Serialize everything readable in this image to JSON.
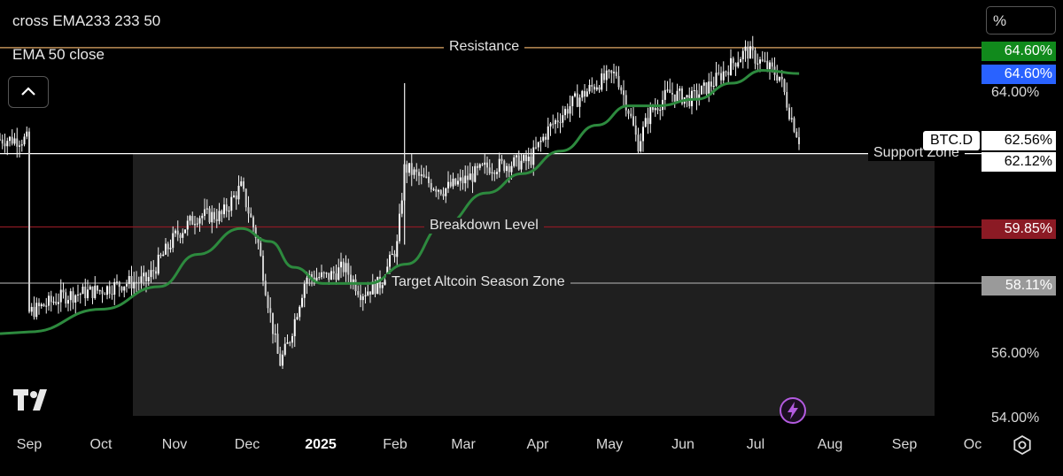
{
  "legend": {
    "line1": "cross EMA233 233 50",
    "line2": "EMA 50 close"
  },
  "scale_button": "%",
  "symbol_tag": "BTC.D",
  "price_tags": [
    {
      "label": "64.60%",
      "bg": "#118a1c",
      "fg": "#ffffff"
    },
    {
      "label": "64.60%",
      "bg": "#2962ff",
      "fg": "#ffffff"
    },
    {
      "label": "62.56%",
      "bg": "#ffffff",
      "fg": "#000000"
    },
    {
      "label": "62.12%",
      "bg": "#ffffff",
      "fg": "#000000"
    },
    {
      "label": "59.85%",
      "bg": "#8b1a24",
      "fg": "#ffffff"
    },
    {
      "label": "58.11%",
      "bg": "#9a9a9a",
      "fg": "#ffffff"
    }
  ],
  "chart_data": {
    "type": "candlestick",
    "symbol": "BTC.D",
    "y_unit": "%",
    "y_axis_ticks": [
      "64.00%",
      "56.00%",
      "54.00%"
    ],
    "x_axis_ticks": [
      "Sep",
      "Oct",
      "Nov",
      "Dec",
      "2025",
      "Feb",
      "Mar",
      "Apr",
      "May",
      "Jun",
      "Jul",
      "Aug",
      "Sep",
      "Oc"
    ],
    "horizontal_levels": [
      {
        "label": "Resistance",
        "value": 65.4,
        "color": "#e0a766"
      },
      {
        "label": "Support Zone",
        "value": 62.12,
        "color": "#ffffff"
      },
      {
        "label": "Breakdown Level",
        "value": 59.85,
        "color": "#8b1a24"
      },
      {
        "label": "Target Altcoin Season Zone",
        "value": 58.11,
        "color": "#9a9a9a"
      }
    ],
    "zone_range": [
      54.0,
      62.12
    ],
    "ema": {
      "name": "EMA 50 close",
      "color": "#2d8a3e"
    },
    "price_path": [
      [
        "2024-09-01",
        57.2
      ],
      [
        "2024-09-15",
        57.7
      ],
      [
        "2024-10-01",
        57.9
      ],
      [
        "2024-10-10",
        58.1
      ],
      [
        "2024-10-20",
        58.2
      ],
      [
        "2024-11-01",
        59.6
      ],
      [
        "2024-11-10",
        60.2
      ],
      [
        "2024-11-20",
        60.2
      ],
      [
        "2024-11-28",
        61.1
      ],
      [
        "2024-12-05",
        59.4
      ],
      [
        "2024-12-10",
        57.2
      ],
      [
        "2024-12-14",
        55.6
      ],
      [
        "2024-12-18",
        56.3
      ],
      [
        "2024-12-25",
        58.3
      ],
      [
        "2025-01-03",
        58.3
      ],
      [
        "2025-01-10",
        58.6
      ],
      [
        "2025-01-17",
        57.8
      ],
      [
        "2025-01-25",
        58.1
      ],
      [
        "2025-02-01",
        59.3
      ],
      [
        "2025-02-04",
        61.7
      ],
      [
        "2025-02-12",
        61.3
      ],
      [
        "2025-02-20",
        61.0
      ],
      [
        "2025-03-01",
        61.3
      ],
      [
        "2025-03-10",
        61.7
      ],
      [
        "2025-03-20",
        61.8
      ],
      [
        "2025-03-28",
        61.9
      ],
      [
        "2025-04-05",
        62.9
      ],
      [
        "2025-04-15",
        63.7
      ],
      [
        "2025-04-25",
        64.3
      ],
      [
        "2025-05-03",
        64.6
      ],
      [
        "2025-05-08",
        63.5
      ],
      [
        "2025-05-12",
        62.4
      ],
      [
        "2025-05-17",
        63.4
      ],
      [
        "2025-05-25",
        64.0
      ],
      [
        "2025-06-03",
        63.8
      ],
      [
        "2025-06-12",
        64.3
      ],
      [
        "2025-06-20",
        64.9
      ],
      [
        "2025-06-26",
        65.3
      ],
      [
        "2025-07-03",
        64.9
      ],
      [
        "2025-07-10",
        64.5
      ],
      [
        "2025-07-14",
        63.4
      ],
      [
        "2025-07-18",
        62.56
      ]
    ],
    "ema_path": [
      [
        "2024-09-01",
        56.6
      ],
      [
        "2024-10-01",
        57.3
      ],
      [
        "2024-10-25",
        58.0
      ],
      [
        "2024-11-10",
        59.0
      ],
      [
        "2024-11-28",
        59.8
      ],
      [
        "2024-12-10",
        59.4
      ],
      [
        "2024-12-20",
        58.6
      ],
      [
        "2025-01-01",
        58.1
      ],
      [
        "2025-01-20",
        58.1
      ],
      [
        "2025-02-05",
        58.7
      ],
      [
        "2025-02-20",
        59.9
      ],
      [
        "2025-03-10",
        60.9
      ],
      [
        "2025-03-25",
        61.5
      ],
      [
        "2025-04-10",
        62.2
      ],
      [
        "2025-04-25",
        63.0
      ],
      [
        "2025-05-08",
        63.6
      ],
      [
        "2025-05-20",
        63.6
      ],
      [
        "2025-06-05",
        63.8
      ],
      [
        "2025-06-20",
        64.3
      ],
      [
        "2025-07-03",
        64.7
      ],
      [
        "2025-07-18",
        64.6
      ]
    ]
  }
}
